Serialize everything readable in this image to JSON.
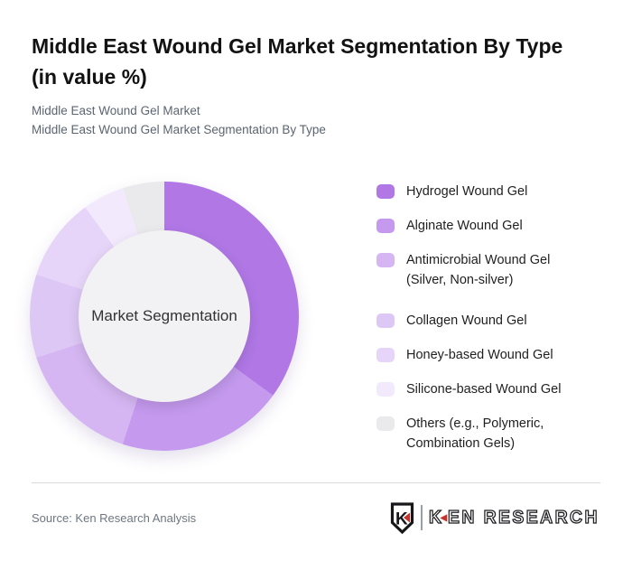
{
  "header": {
    "title_lines": [
      "Middle East Wound Gel Market Segmentation By Type",
      "(in value %)"
    ],
    "subtitle_lines": [
      "Middle East Wound Gel Market",
      "Middle East Wound Gel Market Segmentation By Type"
    ]
  },
  "chart_data": {
    "type": "pie",
    "variant": "donut",
    "title": "Middle East Wound Gel Market Segmentation By Type (in value %)",
    "center_label": "Market Segmentation",
    "center_circle_color": "#f2f1f3",
    "start_angle_deg": 0,
    "direction": "clockwise",
    "legend_position": "right",
    "values_are_estimates_from_arc_angles": true,
    "segments": [
      {
        "label": "Hydrogel Wound Gel",
        "label_lines": [
          "Hydrogel Wound Gel"
        ],
        "value_pct": 35,
        "color": "#b077e5"
      },
      {
        "label": "Alginate Wound Gel",
        "label_lines": [
          "Alginate Wound Gel"
        ],
        "value_pct": 20,
        "color": "#c499ee"
      },
      {
        "label": "Antimicrobial Wound Gel (Silver, Non-silver)",
        "label_lines": [
          "Antimicrobial Wound Gel",
          "(Silver, Non-silver)"
        ],
        "value_pct": 15,
        "color": "#d5b6f2"
      },
      {
        "label": "Collagen Wound Gel",
        "label_lines": [
          "Collagen Wound Gel"
        ],
        "value_pct": 10,
        "color": "#ddc7f5"
      },
      {
        "label": "Honey-based Wound Gel",
        "label_lines": [
          "Honey-based Wound Gel"
        ],
        "value_pct": 10,
        "color": "#e6d5f8"
      },
      {
        "label": "Silicone-based Wound Gel",
        "label_lines": [
          "Silicone-based Wound Gel"
        ],
        "value_pct": 5,
        "color": "#f2eafc"
      },
      {
        "label": "Others (e.g., Polymeric, Combination Gels)",
        "label_lines": [
          "Others (e.g., Polymeric,",
          "Combination Gels)"
        ],
        "value_pct": 5,
        "color": "#eaeaec"
      }
    ]
  },
  "footer": {
    "source": "Source: Ken Research Analysis",
    "logo": {
      "monogram": "K",
      "brand_k": "K",
      "brand_rest": "EN RESEARCH",
      "accent_red": "#c5342c"
    }
  }
}
